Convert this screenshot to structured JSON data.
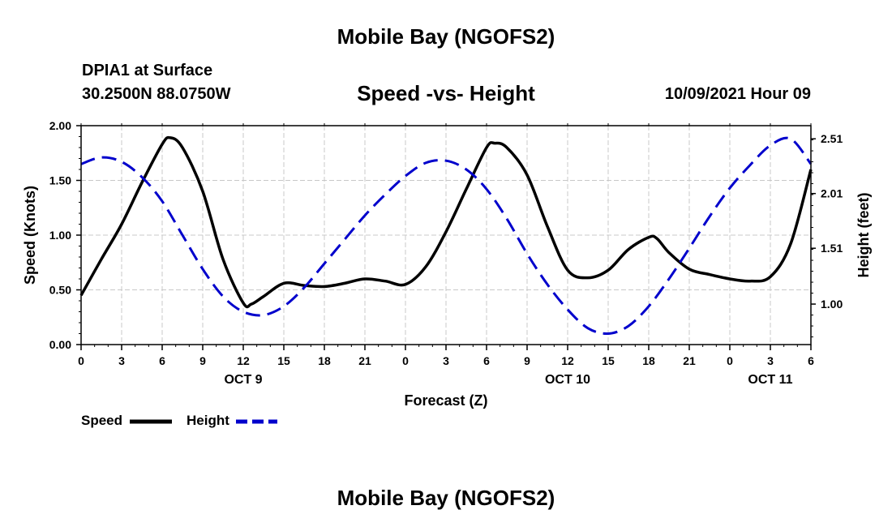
{
  "header": {
    "title": "Mobile Bay (NGOFS2)",
    "station": "DPIA1 at Surface",
    "coordinates": "30.2500N  88.0750W",
    "subtitle": "Speed -vs- Height",
    "datetime": "10/09/2021 Hour 09"
  },
  "footer": {
    "title": "Mobile Bay (NGOFS2)"
  },
  "legend": {
    "speed_label": "Speed",
    "height_label": "Height"
  },
  "chart_data": {
    "type": "line",
    "xlabel": "Forecast (Z)",
    "ylabel": "Speed (Knots)",
    "y2label": "Height (feet)",
    "x_unit": "hours",
    "xlim": [
      0,
      54
    ],
    "ylim": [
      0,
      2.0
    ],
    "y2lim": [
      0.63,
      2.63
    ],
    "grid": true,
    "legend_position": "bottom-left",
    "x_ticks": [
      0,
      3,
      6,
      9,
      12,
      15,
      18,
      21,
      24,
      27,
      30,
      33,
      36,
      39,
      42,
      45,
      48,
      51,
      54
    ],
    "x_tick_labels": [
      "0",
      "3",
      "6",
      "9",
      "12",
      "15",
      "18",
      "21",
      "0",
      "3",
      "6",
      "9",
      "12",
      "15",
      "18",
      "21",
      "0",
      "3",
      "6"
    ],
    "date_labels": [
      {
        "x": 12,
        "label": "OCT 9"
      },
      {
        "x": 36,
        "label": "OCT 10"
      },
      {
        "x": 51,
        "label": "OCT 11"
      }
    ],
    "y_ticks": [
      0,
      0.5,
      1.0,
      1.5,
      2.0
    ],
    "y_tick_labels": [
      "0.00",
      "0.50",
      "1.00",
      "1.50",
      "2.00"
    ],
    "y2_ticks": [
      1.0,
      1.51,
      2.01,
      2.51
    ],
    "y2_tick_labels": [
      "1.00",
      "1.51",
      "2.01",
      "2.51"
    ],
    "series": [
      {
        "name": "Speed",
        "axis": "left",
        "color": "#000000",
        "style": "solid",
        "x": [
          0,
          1.5,
          3,
          4.5,
          6,
          6.6,
          7.5,
          9,
          10.5,
          12,
          12.6,
          13.5,
          15,
          16.5,
          18,
          19.5,
          21,
          22.5,
          24,
          25.5,
          27,
          28.5,
          30,
          30.6,
          31.5,
          33,
          34.5,
          36,
          37.5,
          39,
          40.5,
          42,
          42.6,
          43.5,
          45,
          46.5,
          48,
          49.5,
          51,
          52.5,
          54
        ],
        "y": [
          0.45,
          0.78,
          1.1,
          1.48,
          1.83,
          1.89,
          1.8,
          1.4,
          0.78,
          0.38,
          0.37,
          0.44,
          0.56,
          0.54,
          0.53,
          0.56,
          0.6,
          0.58,
          0.55,
          0.71,
          1.03,
          1.42,
          1.8,
          1.84,
          1.8,
          1.55,
          1.08,
          0.68,
          0.61,
          0.68,
          0.87,
          0.98,
          0.97,
          0.84,
          0.69,
          0.64,
          0.6,
          0.58,
          0.62,
          0.92,
          1.6
        ]
      },
      {
        "name": "Height",
        "axis": "right",
        "color": "#0000cc",
        "style": "dashed",
        "x": [
          0,
          1.5,
          3,
          4.5,
          6,
          7.5,
          9,
          10.5,
          12,
          13.5,
          15,
          16.5,
          18,
          19.5,
          21,
          22.5,
          24,
          25.5,
          27,
          28.5,
          30,
          31.5,
          33,
          34.5,
          36,
          37.5,
          39,
          40.5,
          42,
          43.5,
          45,
          46.5,
          48,
          49.5,
          51,
          52.5,
          54
        ],
        "y": [
          2.28,
          2.34,
          2.3,
          2.16,
          1.94,
          1.63,
          1.32,
          1.07,
          0.93,
          0.9,
          0.98,
          1.15,
          1.37,
          1.59,
          1.81,
          2.0,
          2.17,
          2.29,
          2.31,
          2.23,
          2.05,
          1.78,
          1.46,
          1.18,
          0.95,
          0.78,
          0.73,
          0.8,
          0.98,
          1.23,
          1.51,
          1.8,
          2.06,
          2.27,
          2.45,
          2.51,
          2.28
        ]
      }
    ]
  }
}
